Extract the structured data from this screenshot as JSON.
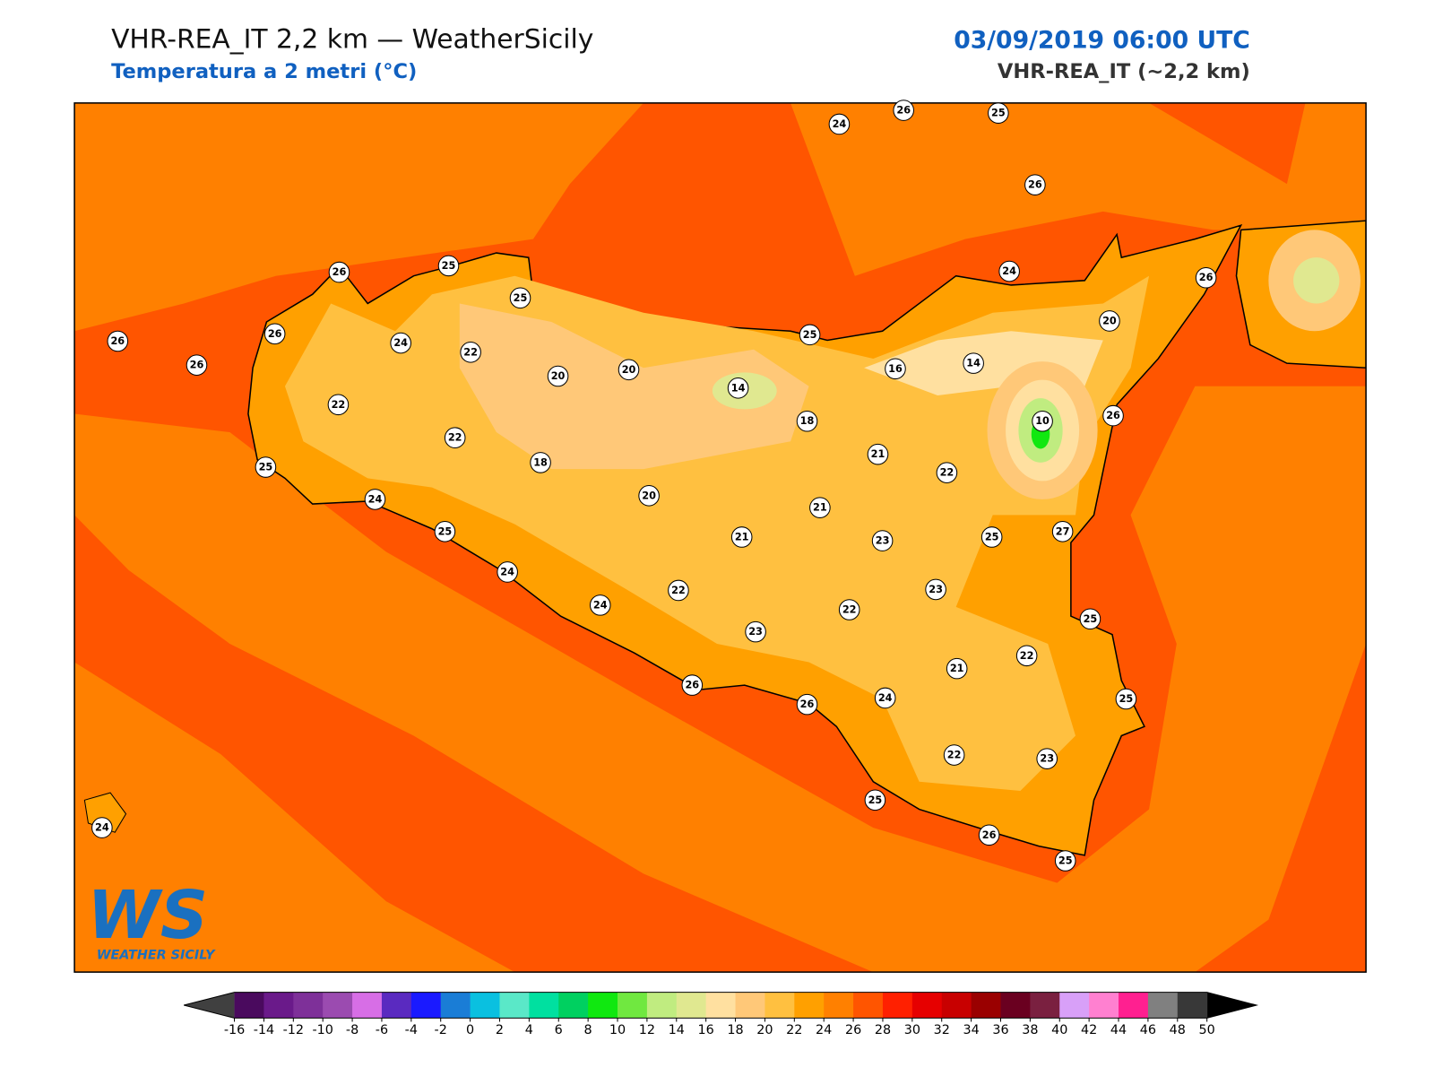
{
  "header": {
    "title": "VHR-REA_IT 2,2 km — WeatherSicily",
    "subtitle": "Temperatura a 2 metri (°C)",
    "date": "03/09/2019 06:00 UTC",
    "model": "VHR-REA_IT (~2,2 km)"
  },
  "stations": [
    24,
    26,
    25,
    26,
    26,
    25,
    25,
    24,
    26,
    26,
    26,
    24,
    22,
    25,
    20,
    26,
    20,
    20,
    14,
    16,
    14,
    10,
    26,
    22,
    22,
    18,
    18,
    21,
    22,
    25,
    24,
    20,
    21,
    25,
    21,
    23,
    25,
    27,
    24,
    23,
    22,
    24,
    22,
    25,
    23,
    22,
    21,
    26,
    26,
    24,
    25,
    22,
    23,
    25,
    24,
    26,
    25
  ],
  "colorbar": {
    "ticks": [
      -16,
      -14,
      -12,
      -10,
      -8,
      -6,
      -4,
      -2,
      0,
      2,
      4,
      6,
      8,
      10,
      12,
      14,
      16,
      18,
      20,
      22,
      24,
      26,
      28,
      30,
      32,
      34,
      36,
      38,
      40,
      42,
      44,
      46,
      48,
      50
    ],
    "colors": [
      "#4a0a5e",
      "#6a1a8a",
      "#7e3099",
      "#9b4bb0",
      "#d76ee6",
      "#5a2ac0",
      "#1a1aff",
      "#1a7dd6",
      "#0ac0e0",
      "#5ae8c8",
      "#00e0a0",
      "#00d060",
      "#10e810",
      "#70e840",
      "#c0ec80",
      "#e0e890",
      "#ffe0a0",
      "#ffc878",
      "#ffc040",
      "#ffa000",
      "#ff8000",
      "#ff5500",
      "#ff2000",
      "#e60000",
      "#c80000",
      "#9a0000",
      "#6a0020",
      "#7a2040",
      "#d8a0f8",
      "#ff80d0",
      "#ff2090",
      "#808080",
      "#383838"
    ],
    "under_color": "#404040",
    "over_color": "#000000"
  },
  "logo": {
    "mark": "WS",
    "name": "WEATHER SICILY"
  }
}
